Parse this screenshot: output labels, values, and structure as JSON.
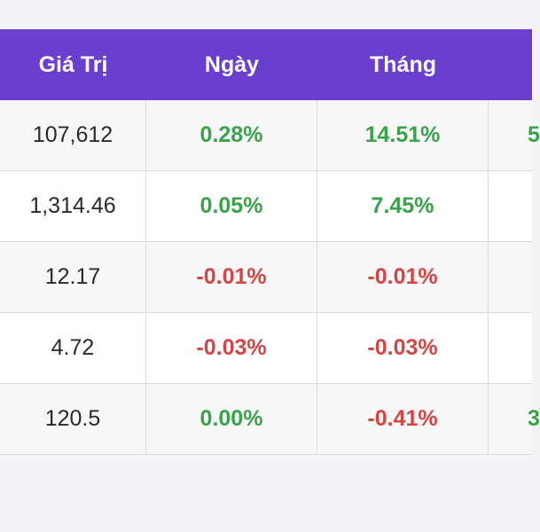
{
  "table": {
    "headers": [
      "Giá Trị",
      "Ngày",
      "Tháng",
      ""
    ],
    "rows": [
      {
        "value": "107,612",
        "day": "0.28%",
        "day_sign": "pos",
        "month": "14.51%",
        "month_sign": "pos",
        "extra": "5",
        "extra_sign": "pos"
      },
      {
        "value": "1,314.46",
        "day": "0.05%",
        "day_sign": "pos",
        "month": "7.45%",
        "month_sign": "pos",
        "extra": "",
        "extra_sign": "pos"
      },
      {
        "value": "12.17",
        "day": "-0.01%",
        "day_sign": "neg",
        "month": "-0.01%",
        "month_sign": "neg",
        "extra": "",
        "extra_sign": "neg"
      },
      {
        "value": "4.72",
        "day": "-0.03%",
        "day_sign": "neg",
        "month": "-0.03%",
        "month_sign": "neg",
        "extra": "",
        "extra_sign": "neg"
      },
      {
        "value": "120.5",
        "day": "0.00%",
        "day_sign": "pos",
        "month": "-0.41%",
        "month_sign": "neg",
        "extra": "3",
        "extra_sign": "pos"
      }
    ]
  },
  "colors": {
    "header_bg": "#6a3fcf",
    "positive": "#3aa24a",
    "negative": "#d64545"
  }
}
